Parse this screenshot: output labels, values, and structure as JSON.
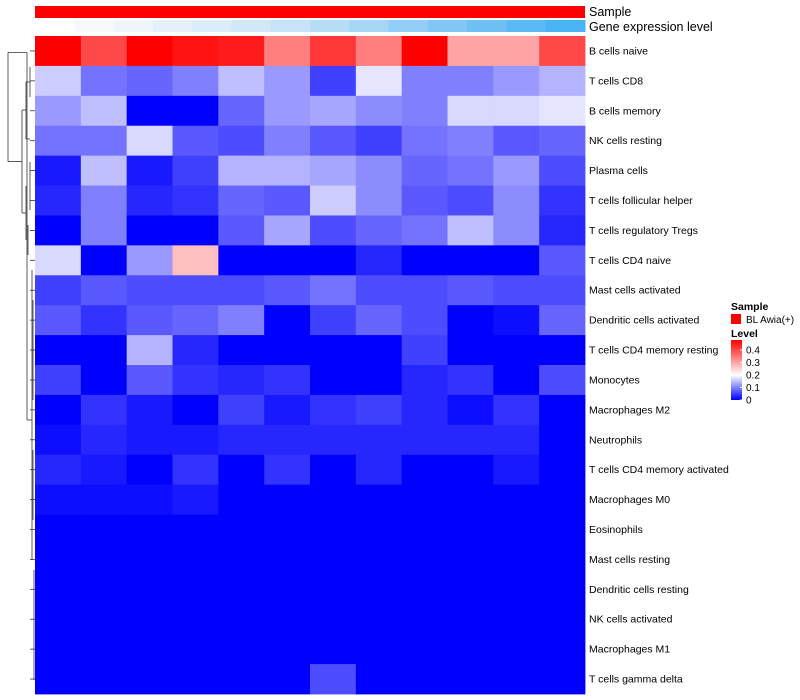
{
  "chart_data": {
    "type": "heatmap",
    "title": "",
    "annotations": {
      "sample_label": "Sample",
      "expression_label": "Gene expression level",
      "sample_color": "#ff0000",
      "expression_colors": [
        "#ffffff",
        "#f7fafc",
        "#eef5fb",
        "#e5f0fa",
        "#dcecf9",
        "#d2e8f8",
        "#c6e3f7",
        "#b6dcf6",
        "#a6d6f6",
        "#93cef6",
        "#80c7f5",
        "#6ec0f5",
        "#5bb9f4",
        "#4ab3f4"
      ]
    },
    "rows": [
      "B cells naive",
      "T cells CD8",
      "B cells memory",
      "NK cells resting",
      "Plasma cells",
      "T cells follicular helper",
      "T cells regulatory  Tregs",
      "T cells CD4 naive",
      "Mast cells activated",
      "Dendritic cells activated",
      "T cells CD4 memory resting",
      "Monocytes",
      "Macrophages M2",
      "Neutrophils",
      "T cells CD4 memory activated",
      "Macrophages M0",
      "Eosinophils",
      "Mast cells resting",
      "Dendritic cells resting",
      "NK cells activated",
      "Macrophages M1",
      "T cells gamma delta"
    ],
    "n_columns": 12,
    "values": [
      [
        0.48,
        0.4,
        0.48,
        0.46,
        0.45,
        0.34,
        0.42,
        0.34,
        0.48,
        0.3,
        0.3,
        0.4
      ],
      [
        0.16,
        0.09,
        0.08,
        0.1,
        0.15,
        0.12,
        0.05,
        0.18,
        0.1,
        0.1,
        0.12,
        0.14
      ],
      [
        0.12,
        0.15,
        0.0,
        0.0,
        0.08,
        0.12,
        0.13,
        0.11,
        0.1,
        0.17,
        0.17,
        0.18
      ],
      [
        0.09,
        0.09,
        0.17,
        0.07,
        0.06,
        0.1,
        0.07,
        0.05,
        0.09,
        0.1,
        0.07,
        0.08
      ],
      [
        0.02,
        0.15,
        0.02,
        0.05,
        0.14,
        0.14,
        0.13,
        0.11,
        0.08,
        0.09,
        0.12,
        0.06
      ],
      [
        0.03,
        0.1,
        0.03,
        0.04,
        0.08,
        0.07,
        0.16,
        0.11,
        0.07,
        0.06,
        0.11,
        0.04
      ],
      [
        0.0,
        0.1,
        0.0,
        0.0,
        0.07,
        0.13,
        0.06,
        0.08,
        0.09,
        0.15,
        0.11,
        0.03
      ],
      [
        0.17,
        0.0,
        0.12,
        0.27,
        0.0,
        0.0,
        0.0,
        0.03,
        0.0,
        0.0,
        0.0,
        0.07
      ],
      [
        0.05,
        0.07,
        0.06,
        0.06,
        0.06,
        0.07,
        0.09,
        0.06,
        0.06,
        0.07,
        0.06,
        0.06
      ],
      [
        0.07,
        0.04,
        0.07,
        0.08,
        0.1,
        0.0,
        0.05,
        0.08,
        0.06,
        0.0,
        0.01,
        0.08
      ],
      [
        0.0,
        0.0,
        0.14,
        0.03,
        0.0,
        0.0,
        0.0,
        0.0,
        0.05,
        0.0,
        0.0,
        0.0
      ],
      [
        0.05,
        0.0,
        0.07,
        0.04,
        0.03,
        0.04,
        0.0,
        0.0,
        0.03,
        0.04,
        0.0,
        0.06
      ],
      [
        0.0,
        0.04,
        0.02,
        0.0,
        0.05,
        0.02,
        0.04,
        0.05,
        0.03,
        0.01,
        0.04,
        0.0
      ],
      [
        0.01,
        0.03,
        0.02,
        0.02,
        0.03,
        0.03,
        0.03,
        0.03,
        0.03,
        0.03,
        0.03,
        0.0
      ],
      [
        0.03,
        0.02,
        0.0,
        0.04,
        0.0,
        0.04,
        0.0,
        0.03,
        0.0,
        0.0,
        0.02,
        0.0
      ],
      [
        0.01,
        0.01,
        0.01,
        0.02,
        0.0,
        0.0,
        0.0,
        0.0,
        0.0,
        0.0,
        0.0,
        0.0
      ],
      [
        0.0,
        0.0,
        0.0,
        0.0,
        0.0,
        0.0,
        0.0,
        0.0,
        0.0,
        0.0,
        0.0,
        0.0
      ],
      [
        0.0,
        0.0,
        0.0,
        0.0,
        0.0,
        0.0,
        0.0,
        0.0,
        0.0,
        0.0,
        0.0,
        0.0
      ],
      [
        0.0,
        0.0,
        0.0,
        0.0,
        0.0,
        0.0,
        0.0,
        0.0,
        0.0,
        0.0,
        0.0,
        0.0
      ],
      [
        0.0,
        0.0,
        0.0,
        0.0,
        0.0,
        0.0,
        0.0,
        0.0,
        0.0,
        0.0,
        0.0,
        0.0
      ],
      [
        0.0,
        0.0,
        0.0,
        0.0,
        0.0,
        0.0,
        0.0,
        0.0,
        0.0,
        0.0,
        0.0,
        0.0
      ],
      [
        0.0,
        0.0,
        0.0,
        0.0,
        0.0,
        0.0,
        0.06,
        0.0,
        0.0,
        0.0,
        0.0,
        0.0
      ]
    ],
    "color_scale": {
      "range": [
        0,
        0.48
      ],
      "stops": [
        {
          "v": 0.0,
          "color": "#0000ff"
        },
        {
          "v": 0.2,
          "color": "#ffffff"
        },
        {
          "v": 0.48,
          "color": "#ff0000"
        }
      ]
    },
    "legend": {
      "position": "right",
      "sample_title": "Sample",
      "sample_entry": "BL Awia(+)",
      "level_title": "Level",
      "ticks": [
        {
          "v": 0.4,
          "label": "0.4"
        },
        {
          "v": 0.3,
          "label": "0.3"
        },
        {
          "v": 0.2,
          "label": "0.2"
        },
        {
          "v": 0.1,
          "label": "0.1"
        },
        {
          "v": 0.0,
          "label": "0"
        }
      ]
    }
  }
}
